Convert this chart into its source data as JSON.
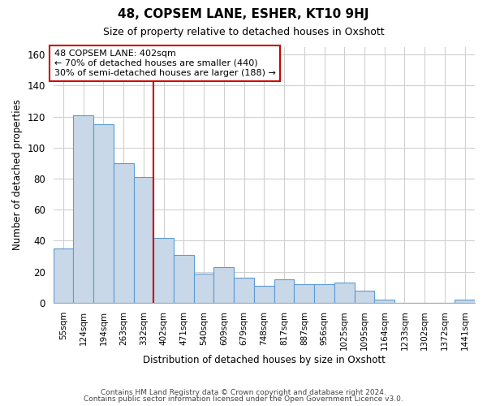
{
  "title": "48, COPSEM LANE, ESHER, KT10 9HJ",
  "subtitle": "Size of property relative to detached houses in Oxshott",
  "xlabel": "Distribution of detached houses by size in Oxshott",
  "ylabel": "Number of detached properties",
  "bar_labels": [
    "55sqm",
    "124sqm",
    "194sqm",
    "263sqm",
    "332sqm",
    "402sqm",
    "471sqm",
    "540sqm",
    "609sqm",
    "679sqm",
    "748sqm",
    "817sqm",
    "887sqm",
    "956sqm",
    "1025sqm",
    "1095sqm",
    "1164sqm",
    "1233sqm",
    "1302sqm",
    "1372sqm",
    "1441sqm"
  ],
  "bar_values": [
    35,
    121,
    115,
    90,
    81,
    42,
    31,
    19,
    23,
    16,
    11,
    15,
    12,
    12,
    13,
    8,
    2,
    0,
    0,
    0,
    2
  ],
  "bar_color": "#c8d8e8",
  "bar_edge_color": "#5b9bd5",
  "vline_color": "#cc0000",
  "annotation_title": "48 COPSEM LANE: 402sqm",
  "annotation_line1": "← 70% of detached houses are smaller (440)",
  "annotation_line2": "30% of semi-detached houses are larger (188) →",
  "annotation_box_edge_color": "#cc0000",
  "ylim": [
    0,
    165
  ],
  "yticks": [
    0,
    20,
    40,
    60,
    80,
    100,
    120,
    140,
    160
  ],
  "footer1": "Contains HM Land Registry data © Crown copyright and database right 2024.",
  "footer2": "Contains public sector information licensed under the Open Government Licence v3.0.",
  "background_color": "#ffffff",
  "grid_color": "#d0d0d0"
}
